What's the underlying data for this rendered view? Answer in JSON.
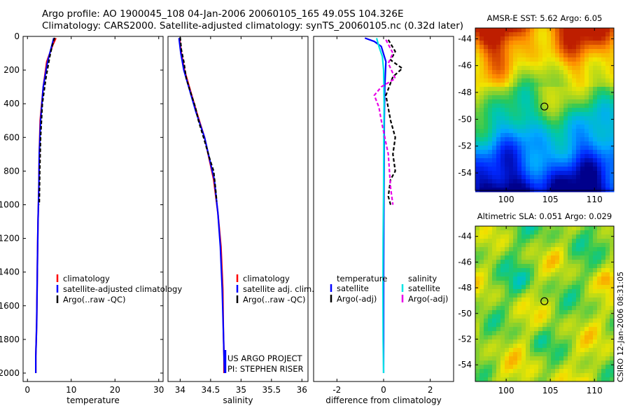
{
  "header": {
    "line1": "Argo profile: AO 1900045_108 04-Jan-2006 20060105_165 49.05S 104.326E",
    "line2": "Climatology: CARS2000. Satellite-adjusted climatology: synTS_20060105.nc (0.32d later)"
  },
  "credit": "CSIRO 12-Jan-2006 08:31:05",
  "colors": {
    "climatology": "#ff0000",
    "satellite": "#0000ff",
    "argo": "#000000",
    "salinity_satellite": "#00e5e5",
    "salinity_argo": "#e800e8"
  },
  "chart_data": [
    {
      "id": "temperature",
      "type": "line",
      "xlabel": "temperature",
      "ylabel": "",
      "xlim": [
        -1,
        31
      ],
      "ylim": [
        2050,
        0
      ],
      "xticks": [
        0,
        10,
        20,
        30
      ],
      "yticks": [
        0,
        200,
        400,
        600,
        800,
        1000,
        1200,
        1400,
        1600,
        1800,
        2000
      ],
      "series": [
        {
          "name": "climatology",
          "color": "#ff0000",
          "style": "solid",
          "x": [
            6.5,
            5.8,
            4.4,
            3.6,
            2.9,
            2.7,
            2.6,
            2.4,
            2.3,
            2.2,
            2.1,
            2.0,
            1.9,
            1.9
          ],
          "y": [
            10,
            50,
            150,
            300,
            500,
            700,
            900,
            1100,
            1300,
            1500,
            1700,
            1800,
            1900,
            2000
          ]
        },
        {
          "name": "satellite-adjusted climatology",
          "color": "#0000ff",
          "style": "solid",
          "x": [
            6.0,
            5.6,
            4.6,
            3.6,
            3.0,
            2.7,
            2.6,
            2.4,
            2.3,
            2.2,
            2.1,
            2.0,
            1.9,
            1.9
          ],
          "y": [
            10,
            50,
            150,
            300,
            500,
            700,
            900,
            1100,
            1300,
            1500,
            1700,
            1800,
            1900,
            2000
          ]
        },
        {
          "name": "Argo(..raw -QC)",
          "color": "#000000",
          "style": "dashed",
          "x": [
            6.2,
            5.7,
            5.1,
            4.2,
            3.4,
            3.0,
            2.8,
            2.7
          ],
          "y": [
            8,
            50,
            120,
            250,
            400,
            600,
            800,
            1000
          ]
        }
      ],
      "legend": [
        "climatology",
        "satellite-adjusted climatology",
        "Argo(..raw -QC)"
      ]
    },
    {
      "id": "salinity",
      "type": "line",
      "xlabel": "salinity",
      "xlim": [
        33.8,
        36.1
      ],
      "ylim": [
        2050,
        0
      ],
      "xticks": [
        34,
        34.5,
        35,
        35.5,
        36
      ],
      "series": [
        {
          "name": "climatology",
          "color": "#ff0000",
          "style": "solid",
          "x": [
            33.99,
            34.02,
            34.07,
            34.15,
            34.27,
            34.4,
            34.55,
            34.62,
            34.67,
            34.7,
            34.71,
            34.72,
            34.72
          ],
          "y": [
            10,
            100,
            200,
            300,
            450,
            600,
            850,
            1050,
            1250,
            1500,
            1750,
            1900,
            2000
          ]
        },
        {
          "name": "satellite adj. clim.",
          "color": "#0000ff",
          "style": "solid",
          "x": [
            33.98,
            34.01,
            34.06,
            34.14,
            34.26,
            34.4,
            34.56,
            34.62,
            34.66,
            34.69,
            34.71,
            34.72,
            34.73
          ],
          "y": [
            10,
            100,
            200,
            300,
            450,
            600,
            850,
            1050,
            1250,
            1500,
            1750,
            1900,
            2000
          ]
        },
        {
          "name": "Argo(..raw -QC)",
          "color": "#000000",
          "style": "dashed",
          "x": [
            34.0,
            34.02,
            34.06,
            34.1,
            34.16,
            34.25,
            34.3,
            34.4,
            34.48,
            34.55,
            34.58,
            34.6
          ],
          "y": [
            5,
            80,
            150,
            250,
            320,
            420,
            500,
            620,
            720,
            800,
            900,
            980
          ]
        }
      ],
      "legend": [
        "climatology",
        "satellite adj. clim.",
        "Argo(..raw -QC)"
      ],
      "annotations": [
        "US ARGO PROJECT",
        "PI: STEPHEN RISER"
      ]
    },
    {
      "id": "difference",
      "type": "line",
      "xlabel": "difference from climatology",
      "xlim": [
        -3,
        3
      ],
      "ylim": [
        2050,
        0
      ],
      "xticks": [
        -2,
        0,
        2
      ],
      "series": [
        {
          "name": "temperature satellite",
          "color": "#0000ff",
          "style": "solid",
          "x": [
            -0.8,
            -0.4,
            -0.1,
            0.1,
            0.05,
            0.03,
            0.02,
            0.01,
            0.0,
            0.0,
            0.0
          ],
          "y": [
            10,
            30,
            60,
            150,
            300,
            500,
            800,
            1100,
            1400,
            1700,
            2000
          ]
        },
        {
          "name": "salinity satellite",
          "color": "#00e5e5",
          "style": "solid",
          "x": [
            -0.3,
            -0.2,
            -0.05,
            0.0,
            0.02,
            0.01,
            0.0,
            -0.02,
            -0.03,
            -0.02,
            0.0
          ],
          "y": [
            10,
            60,
            120,
            200,
            400,
            600,
            900,
            1200,
            1500,
            1800,
            2000
          ]
        },
        {
          "name": "temperature Argo(-adj)",
          "color": "#000000",
          "style": "dashed",
          "x": [
            0.2,
            0.5,
            0.3,
            0.8,
            0.4,
            0.1,
            0.3,
            0.5,
            0.4,
            0.5,
            0.3,
            0.2,
            0.3
          ],
          "y": [
            20,
            90,
            140,
            190,
            240,
            350,
            500,
            600,
            700,
            800,
            850,
            950,
            1000
          ]
        },
        {
          "name": "salinity Argo(-adj)",
          "color": "#e800e8",
          "style": "dashed",
          "x": [
            0.1,
            0.4,
            0.2,
            0.5,
            -0.1,
            -0.4,
            -0.2,
            -0.1,
            0.2,
            0.3,
            0.4
          ],
          "y": [
            20,
            100,
            160,
            250,
            300,
            350,
            420,
            500,
            700,
            900,
            1000
          ]
        }
      ],
      "legend_temperature": {
        "heading": "temperature",
        "items": [
          "satellite",
          "Argo(-adj)"
        ]
      },
      "legend_salinity": {
        "heading": "salinity",
        "items": [
          "satellite",
          "Argo(-adj)"
        ]
      }
    },
    {
      "id": "sst_map",
      "type": "heatmap",
      "title": "AMSR-E SST: 5.62 Argo: 6.05",
      "xlim": [
        96.5,
        112.2
      ],
      "ylim": [
        -55.3,
        -43.2
      ],
      "xticks": [
        100,
        105,
        110
      ],
      "yticks": [
        -44,
        -46,
        -48,
        -50,
        -52,
        -54
      ],
      "marker": {
        "lon": 104.326,
        "lat": -49.05
      }
    },
    {
      "id": "sla_map",
      "type": "heatmap",
      "title": "Altimetric SLA: 0.051 Argo: 0.029",
      "xlim": [
        96.5,
        112.2
      ],
      "ylim": [
        -55.3,
        -43.2
      ],
      "xticks": [
        100,
        105,
        110
      ],
      "yticks": [
        -44,
        -46,
        -48,
        -50,
        -52,
        -54
      ],
      "marker": {
        "lon": 104.326,
        "lat": -49.05
      }
    }
  ]
}
